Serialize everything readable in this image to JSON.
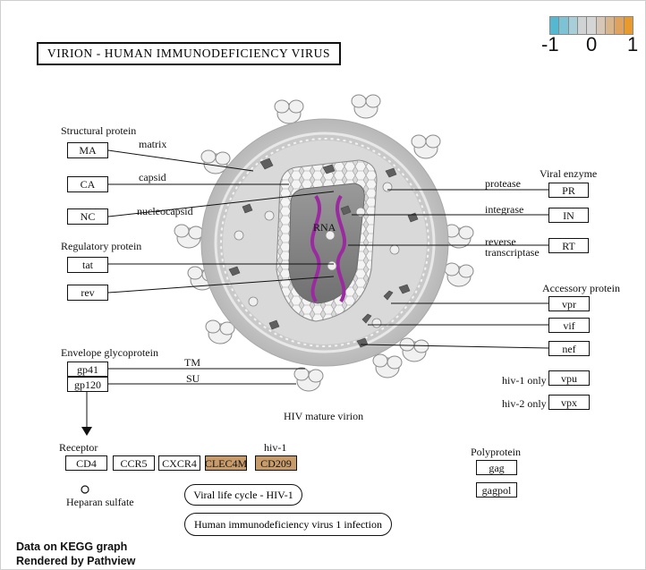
{
  "title": "VIRION  -  HUMAN  IMMUNODEFICIENCY  VIRUS",
  "legend": {
    "min": "-1",
    "mid": "0",
    "max": "1",
    "colors": [
      "#53b8d0",
      "#7cc3d6",
      "#a8cfd8",
      "#cfd3d4",
      "#d5d5d5",
      "#d6c7b6",
      "#d9b58c",
      "#e0a35e",
      "#e99a2c"
    ]
  },
  "categories": {
    "structural": "Structural protein",
    "regulatory": "Regulatory protein",
    "envelope": "Envelope glycoprotein",
    "receptor": "Receptor",
    "viral_enzyme": "Viral enzyme",
    "accessory": "Accessory protein",
    "polyprotein": "Polyprotein",
    "hiv1": "hiv-1"
  },
  "annotations": {
    "matrix": "matrix",
    "capsid": "capsid",
    "nucleocapsid": "nucleocapsid",
    "tm": "TM",
    "su": "SU",
    "rna": "RNA",
    "protease": "protease",
    "integrase": "integrase",
    "reverse": "reverse",
    "transcriptase": "transcriptase",
    "hiv1_only": "hiv-1 only",
    "hiv2_only": "hiv-2 only",
    "virion_caption": "HIV mature virion",
    "heparan": "Heparan sulfate"
  },
  "nodes": {
    "ma": "MA",
    "ca": "CA",
    "nc": "NC",
    "tat": "tat",
    "rev": "rev",
    "gp41": "gp41",
    "gp120": "gp120",
    "pr": "PR",
    "in": "IN",
    "rt": "RT",
    "vpr": "vpr",
    "vif": "vif",
    "nef": "nef",
    "vpu": "vpu",
    "vpx": "vpx",
    "cd4": "CD4",
    "ccr5": "CCR5",
    "cxcr4": "CXCR4",
    "clec4m": "CLEC4M",
    "cd209": "CD209",
    "gag": "gag",
    "gagpol": "gagpol"
  },
  "highlight_color": "#c89b6b",
  "highlighted_nodes": [
    "CLEC4M",
    "CD209"
  ],
  "pathway_links": {
    "life_cycle": "Viral life cycle - HIV-1",
    "infection": "Human immunodeficiency virus 1 infection"
  },
  "credits": {
    "line1": "Data on KEGG graph",
    "line2_a": "Rendered by Pathvi",
    "line2_b": "ew"
  }
}
